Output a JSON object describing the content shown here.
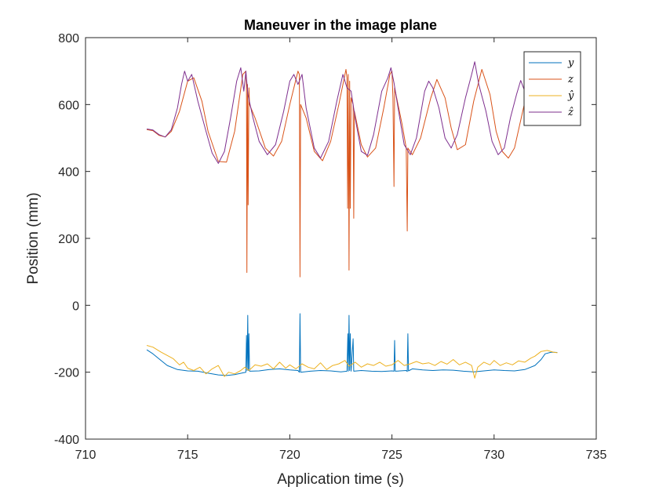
{
  "chart_data": {
    "type": "line",
    "title": "Maneuver in the image plane",
    "xlabel": "Application time (s)",
    "ylabel": "Position (mm)",
    "xlim": [
      710,
      735
    ],
    "ylim": [
      -400,
      800
    ],
    "xticks": [
      710,
      715,
      720,
      725,
      730,
      735
    ],
    "yticks": [
      -400,
      -200,
      0,
      200,
      400,
      600,
      800
    ],
    "xtick_labels": [
      "710",
      "715",
      "720",
      "725",
      "730",
      "735"
    ],
    "ytick_labels": [
      "-400",
      "-200",
      "0",
      "200",
      "400",
      "600",
      "800"
    ],
    "legend": {
      "location": "top-right",
      "entries": [
        "y",
        "z",
        "ŷ",
        "ẑ"
      ]
    },
    "series": [
      {
        "name": "y",
        "color": "#0072BD",
        "points": [
          [
            713.0,
            -133
          ],
          [
            713.3,
            -145
          ],
          [
            713.7,
            -165
          ],
          [
            714.0,
            -180
          ],
          [
            714.5,
            -192
          ],
          [
            715.0,
            -196
          ],
          [
            715.5,
            -197
          ],
          [
            716.0,
            -203
          ],
          [
            716.5,
            -208
          ],
          [
            716.9,
            -210
          ],
          [
            717.3,
            -207
          ],
          [
            717.7,
            -202
          ],
          [
            717.85,
            -200
          ],
          [
            717.88,
            -90
          ],
          [
            717.91,
            -195
          ],
          [
            717.94,
            -30
          ],
          [
            717.97,
            -195
          ],
          [
            718.0,
            -85
          ],
          [
            718.03,
            -197
          ],
          [
            718.5,
            -196
          ],
          [
            719.0,
            -192
          ],
          [
            719.5,
            -190
          ],
          [
            720.0,
            -193
          ],
          [
            720.4,
            -195
          ],
          [
            720.47,
            -200
          ],
          [
            720.5,
            -25
          ],
          [
            720.53,
            -200
          ],
          [
            721.0,
            -197
          ],
          [
            721.5,
            -195
          ],
          [
            722.0,
            -196
          ],
          [
            722.5,
            -199
          ],
          [
            722.8,
            -197
          ],
          [
            722.84,
            -85
          ],
          [
            722.87,
            -197
          ],
          [
            722.9,
            -30
          ],
          [
            722.93,
            -195
          ],
          [
            722.96,
            -85
          ],
          [
            723.0,
            -197
          ],
          [
            723.1,
            -100
          ],
          [
            723.13,
            -197
          ],
          [
            723.5,
            -195
          ],
          [
            724.0,
            -197
          ],
          [
            724.5,
            -198
          ],
          [
            725.0,
            -196
          ],
          [
            725.1,
            -197
          ],
          [
            725.13,
            -105
          ],
          [
            725.16,
            -197
          ],
          [
            725.7,
            -195
          ],
          [
            725.75,
            -198
          ],
          [
            725.78,
            -85
          ],
          [
            725.81,
            -196
          ],
          [
            726.0,
            -190
          ],
          [
            726.5,
            -193
          ],
          [
            727.0,
            -195
          ],
          [
            727.5,
            -193
          ],
          [
            728.0,
            -194
          ],
          [
            728.5,
            -197
          ],
          [
            729.0,
            -199
          ],
          [
            729.5,
            -196
          ],
          [
            730.0,
            -193
          ],
          [
            730.5,
            -195
          ],
          [
            731.0,
            -196
          ],
          [
            731.5,
            -192
          ],
          [
            732.0,
            -180
          ],
          [
            732.3,
            -162
          ],
          [
            732.5,
            -145
          ],
          [
            732.8,
            -140
          ],
          [
            733.1,
            -141
          ]
        ]
      },
      {
        "name": "z",
        "color": "#D95319",
        "points": [
          [
            713.0,
            525
          ],
          [
            713.3,
            522
          ],
          [
            713.6,
            508
          ],
          [
            713.9,
            503
          ],
          [
            714.2,
            520
          ],
          [
            714.6,
            580
          ],
          [
            715.0,
            670
          ],
          [
            715.3,
            680
          ],
          [
            715.7,
            610
          ],
          [
            716.0,
            520
          ],
          [
            716.5,
            430
          ],
          [
            716.9,
            428
          ],
          [
            717.3,
            520
          ],
          [
            717.7,
            690
          ],
          [
            717.85,
            700
          ],
          [
            717.88,
            650
          ],
          [
            717.9,
            98
          ],
          [
            717.93,
            660
          ],
          [
            717.96,
            300
          ],
          [
            718.0,
            650
          ],
          [
            718.03,
            600
          ],
          [
            718.3,
            560
          ],
          [
            718.8,
            470
          ],
          [
            719.2,
            446
          ],
          [
            719.6,
            490
          ],
          [
            720.0,
            600
          ],
          [
            720.4,
            700
          ],
          [
            720.47,
            690
          ],
          [
            720.5,
            85
          ],
          [
            720.53,
            600
          ],
          [
            720.8,
            560
          ],
          [
            721.2,
            460
          ],
          [
            721.6,
            432
          ],
          [
            722.0,
            490
          ],
          [
            722.4,
            600
          ],
          [
            722.75,
            705
          ],
          [
            722.8,
            680
          ],
          [
            722.83,
            290
          ],
          [
            722.86,
            690
          ],
          [
            722.9,
            105
          ],
          [
            722.93,
            670
          ],
          [
            722.96,
            290
          ],
          [
            723.0,
            620
          ],
          [
            723.1,
            600
          ],
          [
            723.13,
            260
          ],
          [
            723.16,
            580
          ],
          [
            723.5,
            480
          ],
          [
            723.8,
            443
          ],
          [
            724.2,
            470
          ],
          [
            724.6,
            590
          ],
          [
            724.9,
            690
          ],
          [
            725.0,
            700
          ],
          [
            725.05,
            620
          ],
          [
            725.1,
            355
          ],
          [
            725.13,
            650
          ],
          [
            725.5,
            540
          ],
          [
            725.7,
            470
          ],
          [
            725.75,
            222
          ],
          [
            725.78,
            470
          ],
          [
            726.0,
            450
          ],
          [
            726.4,
            500
          ],
          [
            726.9,
            620
          ],
          [
            727.2,
            675
          ],
          [
            727.6,
            620
          ],
          [
            727.9,
            530
          ],
          [
            728.2,
            465
          ],
          [
            728.6,
            480
          ],
          [
            729.0,
            610
          ],
          [
            729.4,
            705
          ],
          [
            729.8,
            630
          ],
          [
            730.1,
            520
          ],
          [
            730.4,
            460
          ],
          [
            730.7,
            440
          ],
          [
            731.0,
            470
          ],
          [
            731.4,
            580
          ],
          [
            731.7,
            660
          ],
          [
            732.0,
            640
          ],
          [
            732.2,
            640
          ]
        ]
      },
      {
        "name": "ŷ",
        "color": "#EDB120",
        "points": [
          [
            713.0,
            -120
          ],
          [
            713.3,
            -125
          ],
          [
            713.7,
            -140
          ],
          [
            714.0,
            -150
          ],
          [
            714.3,
            -160
          ],
          [
            714.6,
            -178
          ],
          [
            714.8,
            -170
          ],
          [
            715.0,
            -188
          ],
          [
            715.3,
            -195
          ],
          [
            715.6,
            -185
          ],
          [
            715.9,
            -205
          ],
          [
            716.2,
            -190
          ],
          [
            716.5,
            -180
          ],
          [
            716.8,
            -213
          ],
          [
            717.0,
            -200
          ],
          [
            717.3,
            -205
          ],
          [
            717.6,
            -195
          ],
          [
            717.8,
            -185
          ],
          [
            718.0,
            -195
          ],
          [
            718.3,
            -178
          ],
          [
            718.6,
            -182
          ],
          [
            718.9,
            -175
          ],
          [
            719.2,
            -190
          ],
          [
            719.5,
            -170
          ],
          [
            719.8,
            -188
          ],
          [
            720.0,
            -178
          ],
          [
            720.3,
            -190
          ],
          [
            720.6,
            -175
          ],
          [
            720.9,
            -185
          ],
          [
            721.2,
            -190
          ],
          [
            721.5,
            -172
          ],
          [
            721.8,
            -192
          ],
          [
            722.1,
            -180
          ],
          [
            722.4,
            -175
          ],
          [
            722.7,
            -165
          ],
          [
            722.9,
            -182
          ],
          [
            723.2,
            -170
          ],
          [
            723.5,
            -185
          ],
          [
            723.8,
            -175
          ],
          [
            724.1,
            -180
          ],
          [
            724.4,
            -170
          ],
          [
            724.7,
            -182
          ],
          [
            725.0,
            -178
          ],
          [
            725.3,
            -165
          ],
          [
            725.6,
            -180
          ],
          [
            725.9,
            -175
          ],
          [
            726.2,
            -168
          ],
          [
            726.5,
            -175
          ],
          [
            726.8,
            -172
          ],
          [
            727.1,
            -180
          ],
          [
            727.4,
            -168
          ],
          [
            727.7,
            -176
          ],
          [
            728.0,
            -162
          ],
          [
            728.3,
            -178
          ],
          [
            728.6,
            -170
          ],
          [
            728.9,
            -180
          ],
          [
            729.05,
            -218
          ],
          [
            729.2,
            -185
          ],
          [
            729.5,
            -170
          ],
          [
            729.8,
            -178
          ],
          [
            730.0,
            -165
          ],
          [
            730.3,
            -180
          ],
          [
            730.6,
            -172
          ],
          [
            730.9,
            -178
          ],
          [
            731.2,
            -166
          ],
          [
            731.5,
            -170
          ],
          [
            731.8,
            -158
          ],
          [
            732.0,
            -152
          ],
          [
            732.3,
            -138
          ],
          [
            732.6,
            -135
          ],
          [
            732.9,
            -140
          ],
          [
            733.1,
            -142
          ]
        ]
      },
      {
        "name": "ẑ",
        "color": "#7E2F8E",
        "points": [
          [
            713.0,
            527
          ],
          [
            713.3,
            524
          ],
          [
            713.6,
            510
          ],
          [
            713.9,
            503
          ],
          [
            714.2,
            525
          ],
          [
            714.5,
            590
          ],
          [
            714.7,
            660
          ],
          [
            714.85,
            700
          ],
          [
            715.0,
            670
          ],
          [
            715.2,
            690
          ],
          [
            715.5,
            610
          ],
          [
            715.9,
            520
          ],
          [
            716.2,
            455
          ],
          [
            716.5,
            424
          ],
          [
            716.8,
            460
          ],
          [
            717.1,
            560
          ],
          [
            717.4,
            670
          ],
          [
            717.6,
            710
          ],
          [
            717.75,
            640
          ],
          [
            717.85,
            700
          ],
          [
            717.95,
            630
          ],
          [
            718.2,
            560
          ],
          [
            718.5,
            490
          ],
          [
            718.9,
            450
          ],
          [
            719.3,
            480
          ],
          [
            719.7,
            580
          ],
          [
            720.0,
            670
          ],
          [
            720.2,
            690
          ],
          [
            720.4,
            660
          ],
          [
            720.6,
            690
          ],
          [
            720.8,
            590
          ],
          [
            721.2,
            470
          ],
          [
            721.5,
            440
          ],
          [
            721.9,
            490
          ],
          [
            722.3,
            610
          ],
          [
            722.6,
            690
          ],
          [
            722.8,
            650
          ],
          [
            723.0,
            640
          ],
          [
            723.2,
            560
          ],
          [
            723.5,
            460
          ],
          [
            723.8,
            448
          ],
          [
            724.1,
            510
          ],
          [
            724.5,
            640
          ],
          [
            724.8,
            680
          ],
          [
            724.95,
            710
          ],
          [
            725.1,
            665
          ],
          [
            725.3,
            590
          ],
          [
            725.6,
            480
          ],
          [
            725.9,
            450
          ],
          [
            726.2,
            500
          ],
          [
            726.6,
            640
          ],
          [
            726.8,
            670
          ],
          [
            727.0,
            650
          ],
          [
            727.3,
            590
          ],
          [
            727.6,
            500
          ],
          [
            727.9,
            470
          ],
          [
            728.2,
            510
          ],
          [
            728.6,
            620
          ],
          [
            728.9,
            690
          ],
          [
            729.05,
            728
          ],
          [
            729.25,
            660
          ],
          [
            729.6,
            580
          ],
          [
            729.9,
            490
          ],
          [
            730.2,
            450
          ],
          [
            730.5,
            470
          ],
          [
            730.8,
            560
          ],
          [
            731.1,
            630
          ],
          [
            731.3,
            672
          ],
          [
            731.5,
            640
          ],
          [
            731.8,
            625
          ],
          [
            732.0,
            642
          ],
          [
            732.2,
            636
          ]
        ]
      }
    ]
  }
}
